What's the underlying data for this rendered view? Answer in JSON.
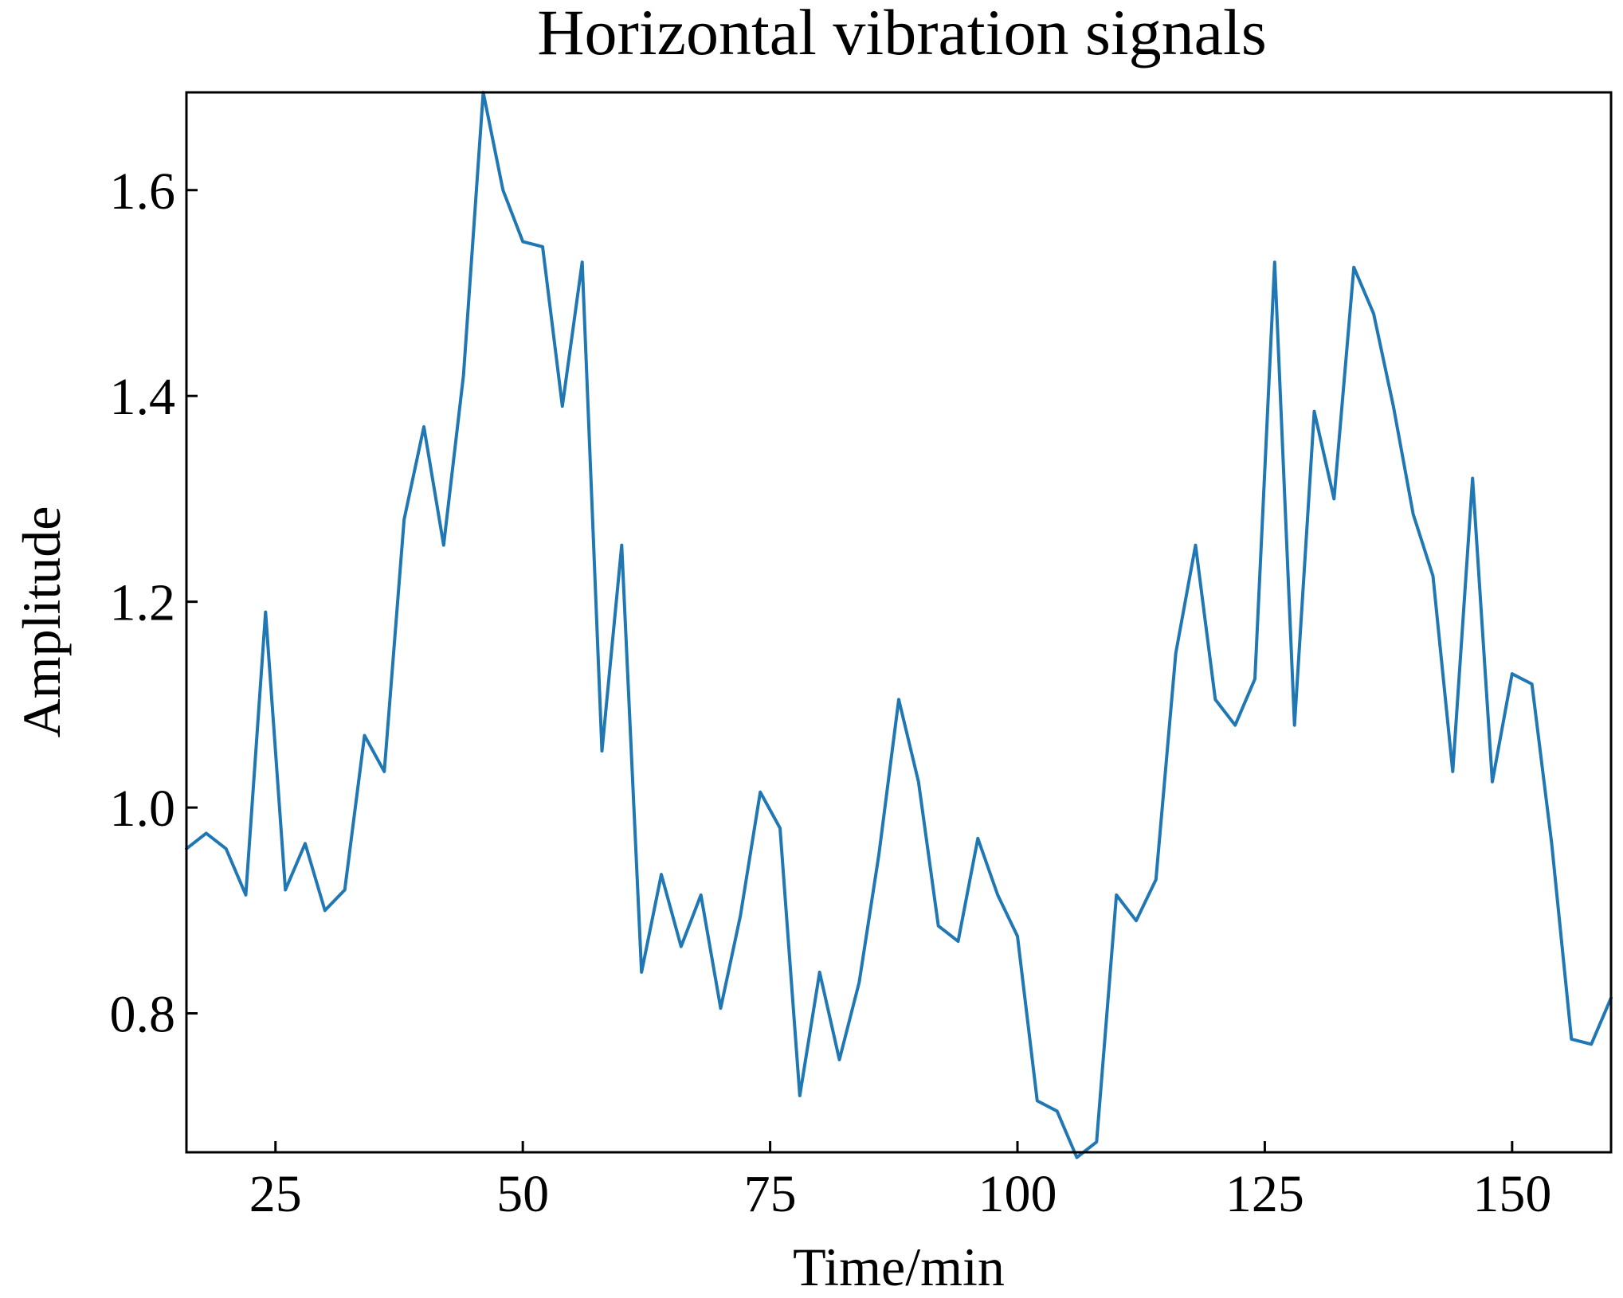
{
  "chart_data": {
    "type": "line",
    "title": "Horizontal vibration signals",
    "xlabel": "Time/min",
    "ylabel": "Amplitude",
    "xlim": [
      16,
      160
    ],
    "ylim": [
      0.665,
      1.695
    ],
    "x_ticks": [
      25,
      50,
      75,
      100,
      125,
      150
    ],
    "x_tick_labels": [
      "25",
      "50",
      "75",
      "100",
      "125",
      "150"
    ],
    "y_ticks": [
      0.8,
      1.0,
      1.2,
      1.4,
      1.6
    ],
    "y_tick_labels": [
      "0.8",
      "1.0",
      "1.2",
      "1.4",
      "1.6"
    ],
    "grid": false,
    "series": [
      {
        "name": "Horizontal vibration",
        "color": "#1f77b4",
        "x": [
          16,
          18,
          20,
          22,
          24,
          26,
          28,
          30,
          32,
          34,
          36,
          38,
          40,
          42,
          44,
          46,
          48,
          50,
          52,
          54,
          56,
          58,
          60,
          62,
          64,
          66,
          68,
          70,
          72,
          74,
          76,
          78,
          80,
          82,
          84,
          86,
          88,
          90,
          92,
          94,
          96,
          98,
          100,
          102,
          104,
          106,
          108,
          110,
          112,
          114,
          116,
          118,
          120,
          122,
          124,
          126,
          128,
          130,
          132,
          134,
          136,
          138,
          140,
          142,
          144,
          146,
          148,
          150,
          152,
          154,
          156,
          158,
          160
        ],
        "values": [
          0.96,
          0.975,
          0.96,
          0.915,
          1.19,
          0.92,
          0.965,
          0.9,
          0.92,
          1.07,
          1.035,
          1.28,
          1.37,
          1.255,
          1.42,
          1.695,
          1.6,
          1.55,
          1.545,
          1.39,
          1.53,
          1.055,
          1.255,
          0.84,
          0.935,
          0.865,
          0.915,
          0.805,
          0.895,
          1.015,
          0.98,
          0.72,
          0.84,
          0.755,
          0.83,
          0.955,
          1.105,
          1.025,
          0.885,
          0.87,
          0.97,
          0.915,
          0.875,
          0.715,
          0.705,
          0.66,
          0.675,
          0.915,
          0.89,
          0.93,
          1.15,
          1.255,
          1.105,
          1.08,
          1.125,
          1.53,
          1.08,
          1.385,
          1.3,
          1.525,
          1.48,
          1.39,
          1.285,
          1.225,
          1.035,
          1.32,
          1.025,
          1.13,
          1.12,
          0.965,
          0.775,
          0.77,
          0.815
        ]
      }
    ]
  }
}
